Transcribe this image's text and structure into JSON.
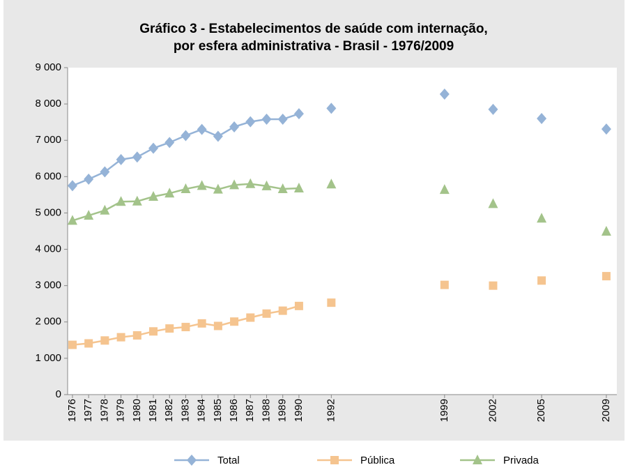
{
  "chart_data": {
    "type": "line",
    "title": [
      "Gráfico 3 - Estabelecimentos de saúde com internação,",
      "por esfera administrativa - Brasil - 1976/2009"
    ],
    "x": [
      1976,
      1977,
      1978,
      1979,
      1980,
      1981,
      1982,
      1983,
      1984,
      1985,
      1986,
      1987,
      1988,
      1989,
      1990,
      1992,
      1999,
      2002,
      2005,
      2009
    ],
    "xlim": [
      1975.7,
      2009.65
    ],
    "ylim": [
      0,
      9000
    ],
    "yticks": [
      0,
      {
        "value": 1000,
        "label": "1 000"
      },
      {
        "value": 2000,
        "label": "2 000"
      },
      {
        "value": 3000,
        "label": "3 000"
      },
      {
        "value": 4000,
        "label": "4 000"
      },
      {
        "value": 5000,
        "label": "5 000"
      },
      {
        "value": 6000,
        "label": "6 000"
      },
      {
        "value": 7000,
        "label": "7 000"
      },
      {
        "value": 8000,
        "label": "8 000"
      },
      {
        "value": 9000,
        "label": "9 000"
      }
    ],
    "legend": "bottom",
    "series": [
      {
        "name": "Total",
        "color": "#95b3d7",
        "marker": "diamond",
        "values": [
          5750,
          5930,
          6130,
          6470,
          6540,
          6780,
          6940,
          7130,
          7300,
          7110,
          7370,
          7510,
          7580,
          7580,
          7730,
          7880,
          8270,
          7850,
          7600,
          7310
        ]
      },
      {
        "name": "Pública",
        "color": "#f5c48f",
        "marker": "square",
        "values": [
          1370,
          1410,
          1490,
          1580,
          1630,
          1740,
          1820,
          1860,
          1960,
          1890,
          2010,
          2120,
          2230,
          2310,
          2440,
          2530,
          3020,
          3000,
          3140,
          3260
        ]
      },
      {
        "name": "Privada",
        "color": "#a3c38a",
        "marker": "triangle",
        "values": [
          4790,
          4930,
          5070,
          5310,
          5320,
          5450,
          5540,
          5660,
          5750,
          5650,
          5770,
          5800,
          5740,
          5660,
          5680,
          5790,
          5640,
          5250,
          4850,
          4490
        ]
      }
    ]
  }
}
